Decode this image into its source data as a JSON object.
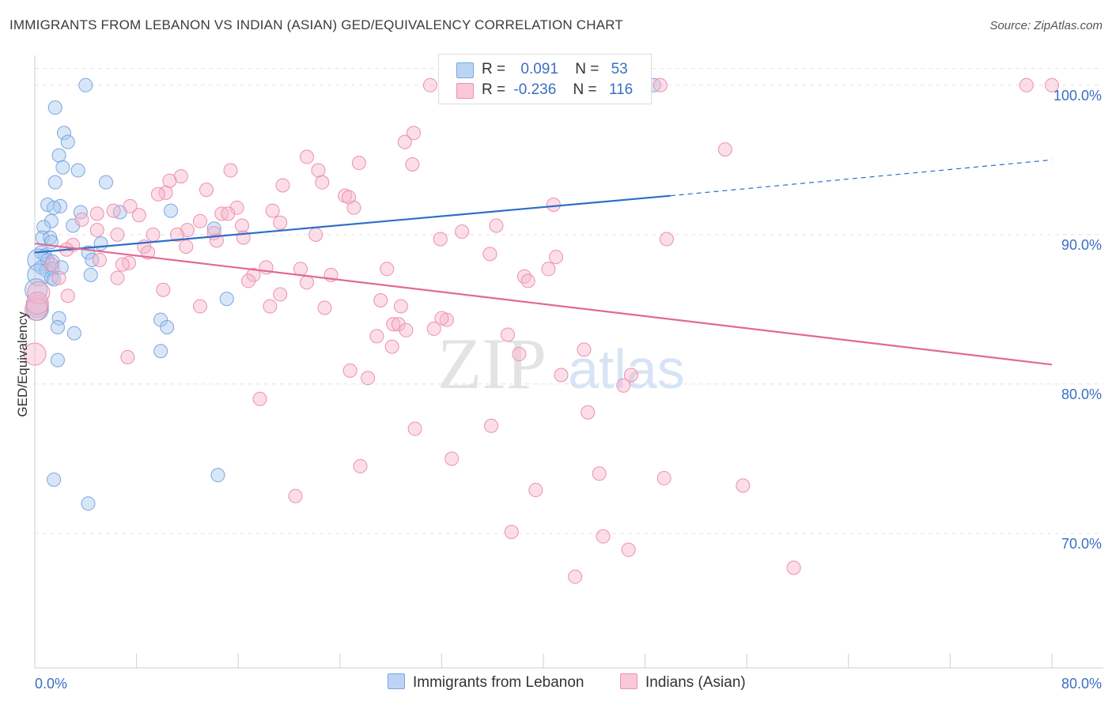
{
  "title": "IMMIGRANTS FROM LEBANON VS INDIAN (ASIAN) GED/EQUIVALENCY CORRELATION CHART",
  "source": "Source: ZipAtlas.com",
  "watermark": {
    "zip": "ZIP",
    "atlas": "atlas"
  },
  "legend_stats": [
    {
      "r_label": "R =",
      "r_value": "0.091",
      "n_label": "N =",
      "n_value": "53",
      "color": "#a8c8f0"
    },
    {
      "r_label": "R =",
      "r_value": "-0.236",
      "n_label": "N =",
      "n_value": "116",
      "color": "#f7b6ca"
    }
  ],
  "chart_data": {
    "type": "scatter",
    "title": "",
    "xlabel": "",
    "ylabel": "GED/Equivalency",
    "xlim": [
      0,
      80
    ],
    "ylim": [
      61,
      102
    ],
    "x_tick_labels": [
      "0.0%",
      "80.0%"
    ],
    "y_ticks": [
      70,
      80,
      90,
      100
    ],
    "y_tick_labels": [
      "70.0%",
      "80.0%",
      "90.0%",
      "100.0%"
    ],
    "grid": true,
    "legend_position": "bottom-center",
    "series": [
      {
        "name": "Immigrants from Lebanon",
        "color": "#a8c8f0",
        "stroke": "#7aa7e0",
        "line_color": "#2d6fc7",
        "trend": {
          "x_start": 0,
          "y_start": 88.8,
          "x_solid_end": 50,
          "y_solid_end": 92.6,
          "x_end": 80,
          "y_end": 95.0
        },
        "points": [
          [
            4.0,
            100.0
          ],
          [
            1.6,
            98.5
          ],
          [
            2.3,
            96.8
          ],
          [
            2.6,
            96.2
          ],
          [
            1.9,
            95.3
          ],
          [
            2.2,
            94.5
          ],
          [
            3.4,
            94.3
          ],
          [
            5.6,
            93.5
          ],
          [
            1.6,
            93.5
          ],
          [
            1.0,
            92.0
          ],
          [
            2.0,
            91.9
          ],
          [
            1.5,
            91.8
          ],
          [
            3.6,
            91.5
          ],
          [
            6.7,
            91.5
          ],
          [
            10.7,
            91.6
          ],
          [
            1.3,
            90.9
          ],
          [
            3.0,
            90.6
          ],
          [
            0.7,
            90.5
          ],
          [
            0.6,
            89.8
          ],
          [
            1.2,
            89.8
          ],
          [
            5.2,
            89.4
          ],
          [
            1.3,
            89.5
          ],
          [
            0.5,
            88.8
          ],
          [
            0.8,
            88.6
          ],
          [
            4.2,
            88.8
          ],
          [
            0.3,
            88.3
          ],
          [
            1.0,
            88.3
          ],
          [
            1.4,
            88.2
          ],
          [
            4.5,
            88.3
          ],
          [
            0.5,
            87.8
          ],
          [
            0.9,
            87.6
          ],
          [
            1.4,
            87.7
          ],
          [
            2.1,
            87.8
          ],
          [
            0.3,
            87.3
          ],
          [
            1.3,
            87.1
          ],
          [
            4.4,
            87.3
          ],
          [
            1.5,
            87.0
          ],
          [
            14.1,
            90.4
          ],
          [
            15.1,
            85.7
          ],
          [
            0.2,
            85.2
          ],
          [
            1.9,
            84.4
          ],
          [
            9.9,
            84.3
          ],
          [
            10.4,
            83.8
          ],
          [
            1.8,
            83.8
          ],
          [
            3.1,
            83.4
          ],
          [
            9.9,
            82.2
          ],
          [
            1.8,
            81.6
          ],
          [
            48.7,
            100.0
          ],
          [
            14.4,
            73.9
          ],
          [
            1.5,
            73.6
          ],
          [
            4.2,
            72.0
          ],
          [
            0.1,
            86.3
          ],
          [
            0.2,
            85.0
          ]
        ]
      },
      {
        "name": "Indians (Asian)",
        "color": "#f7b6ca",
        "stroke": "#ee8fae",
        "line_color": "#e16a94",
        "trend": {
          "x_start": 0,
          "y_start": 89.4,
          "x_end": 80,
          "y_end": 81.3
        },
        "points": [
          [
            31.1,
            100.0
          ],
          [
            49.2,
            100.0
          ],
          [
            78.0,
            100.0
          ],
          [
            80.0,
            100.0
          ],
          [
            29.8,
            96.8
          ],
          [
            29.1,
            96.2
          ],
          [
            54.3,
            95.7
          ],
          [
            21.4,
            95.2
          ],
          [
            25.5,
            94.8
          ],
          [
            29.7,
            94.7
          ],
          [
            15.4,
            94.3
          ],
          [
            22.3,
            94.3
          ],
          [
            11.5,
            93.9
          ],
          [
            10.6,
            93.6
          ],
          [
            22.6,
            93.5
          ],
          [
            19.5,
            93.3
          ],
          [
            13.5,
            93.0
          ],
          [
            10.3,
            92.8
          ],
          [
            9.7,
            92.7
          ],
          [
            24.4,
            92.6
          ],
          [
            24.7,
            92.5
          ],
          [
            40.8,
            92.0
          ],
          [
            7.5,
            91.9
          ],
          [
            25.1,
            91.8
          ],
          [
            15.9,
            91.8
          ],
          [
            18.7,
            91.6
          ],
          [
            6.2,
            91.6
          ],
          [
            4.9,
            91.4
          ],
          [
            8.2,
            91.3
          ],
          [
            14.7,
            91.4
          ],
          [
            15.2,
            91.4
          ],
          [
            3.7,
            91.0
          ],
          [
            13.0,
            90.9
          ],
          [
            19.3,
            90.8
          ],
          [
            16.3,
            90.6
          ],
          [
            12.0,
            90.3
          ],
          [
            36.3,
            90.6
          ],
          [
            4.9,
            90.3
          ],
          [
            14.1,
            90.1
          ],
          [
            9.3,
            90.0
          ],
          [
            11.2,
            90.0
          ],
          [
            22.1,
            90.0
          ],
          [
            33.6,
            90.2
          ],
          [
            6.5,
            90.0
          ],
          [
            16.4,
            89.8
          ],
          [
            14.3,
            89.6
          ],
          [
            31.9,
            89.7
          ],
          [
            49.7,
            89.7
          ],
          [
            3.0,
            89.3
          ],
          [
            11.9,
            89.2
          ],
          [
            8.6,
            89.2
          ],
          [
            2.5,
            89.0
          ],
          [
            8.9,
            88.8
          ],
          [
            35.8,
            88.7
          ],
          [
            41.0,
            88.5
          ],
          [
            5.1,
            88.3
          ],
          [
            7.4,
            88.1
          ],
          [
            1.3,
            88.0
          ],
          [
            6.9,
            88.0
          ],
          [
            18.2,
            87.8
          ],
          [
            20.9,
            87.7
          ],
          [
            27.7,
            87.7
          ],
          [
            40.4,
            87.7
          ],
          [
            17.2,
            87.3
          ],
          [
            23.3,
            87.3
          ],
          [
            38.5,
            87.2
          ],
          [
            1.9,
            87.1
          ],
          [
            6.5,
            87.1
          ],
          [
            16.8,
            86.9
          ],
          [
            21.4,
            86.8
          ],
          [
            38.8,
            86.9
          ],
          [
            10.1,
            86.3
          ],
          [
            19.3,
            86.0
          ],
          [
            2.6,
            85.9
          ],
          [
            27.2,
            85.6
          ],
          [
            13.0,
            85.2
          ],
          [
            18.5,
            85.2
          ],
          [
            22.8,
            85.1
          ],
          [
            28.8,
            85.2
          ],
          [
            0.1,
            85.0
          ],
          [
            32.4,
            84.3
          ],
          [
            32.0,
            84.4
          ],
          [
            28.2,
            84.0
          ],
          [
            28.6,
            84.0
          ],
          [
            29.2,
            83.6
          ],
          [
            31.4,
            83.7
          ],
          [
            37.2,
            83.3
          ],
          [
            26.9,
            83.2
          ],
          [
            28.1,
            82.5
          ],
          [
            43.2,
            82.3
          ],
          [
            38.1,
            82.0
          ],
          [
            7.3,
            81.8
          ],
          [
            0.0,
            82.0
          ],
          [
            24.8,
            80.9
          ],
          [
            41.4,
            80.6
          ],
          [
            46.9,
            80.6
          ],
          [
            26.2,
            80.4
          ],
          [
            46.3,
            79.9
          ],
          [
            17.7,
            79.0
          ],
          [
            43.5,
            78.1
          ],
          [
            29.9,
            77.0
          ],
          [
            35.9,
            77.2
          ],
          [
            32.8,
            75.0
          ],
          [
            25.6,
            74.5
          ],
          [
            44.4,
            74.0
          ],
          [
            49.5,
            73.7
          ],
          [
            55.7,
            73.2
          ],
          [
            39.4,
            72.9
          ],
          [
            20.5,
            72.5
          ],
          [
            37.5,
            70.1
          ],
          [
            44.7,
            69.8
          ],
          [
            46.7,
            68.9
          ],
          [
            59.7,
            67.7
          ],
          [
            42.5,
            67.1
          ],
          [
            0.3,
            86.1
          ],
          [
            0.2,
            85.4
          ]
        ]
      }
    ]
  }
}
